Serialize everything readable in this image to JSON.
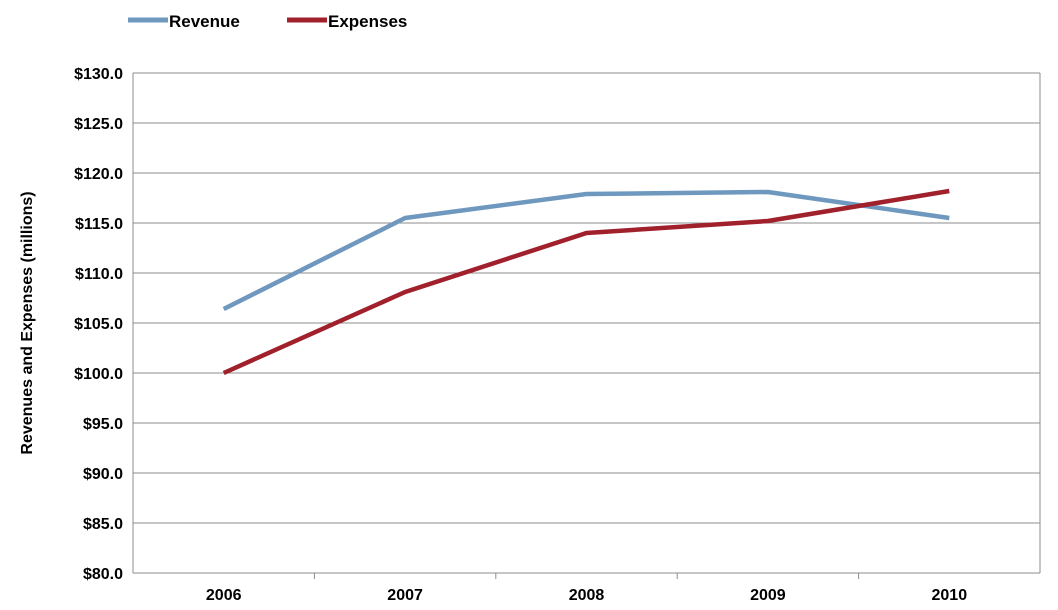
{
  "chart_data": {
    "type": "line",
    "title": "",
    "xlabel": "",
    "ylabel": "Revenues and Expenses (millions)",
    "categories": [
      "2006",
      "2007",
      "2008",
      "2009",
      "2010"
    ],
    "ylim": [
      80,
      130
    ],
    "y_ticks": [
      80,
      85,
      90,
      95,
      100,
      105,
      110,
      115,
      120,
      125,
      130
    ],
    "y_tick_labels": [
      "$80.0",
      "$85.0",
      "$90.0",
      "$95.0",
      "$100.0",
      "$105.0",
      "$110.0",
      "$115.0",
      "$120.0",
      "$125.0",
      "$130.0"
    ],
    "grid": true,
    "legend_position": "top-left",
    "series": [
      {
        "name": "Revenue",
        "color": "#6f98bf",
        "values": [
          106.4,
          115.5,
          117.9,
          118.1,
          115.5
        ]
      },
      {
        "name": "Expenses",
        "color": "#a0202c",
        "values": [
          100.0,
          108.1,
          114.0,
          115.2,
          118.2
        ]
      }
    ]
  }
}
